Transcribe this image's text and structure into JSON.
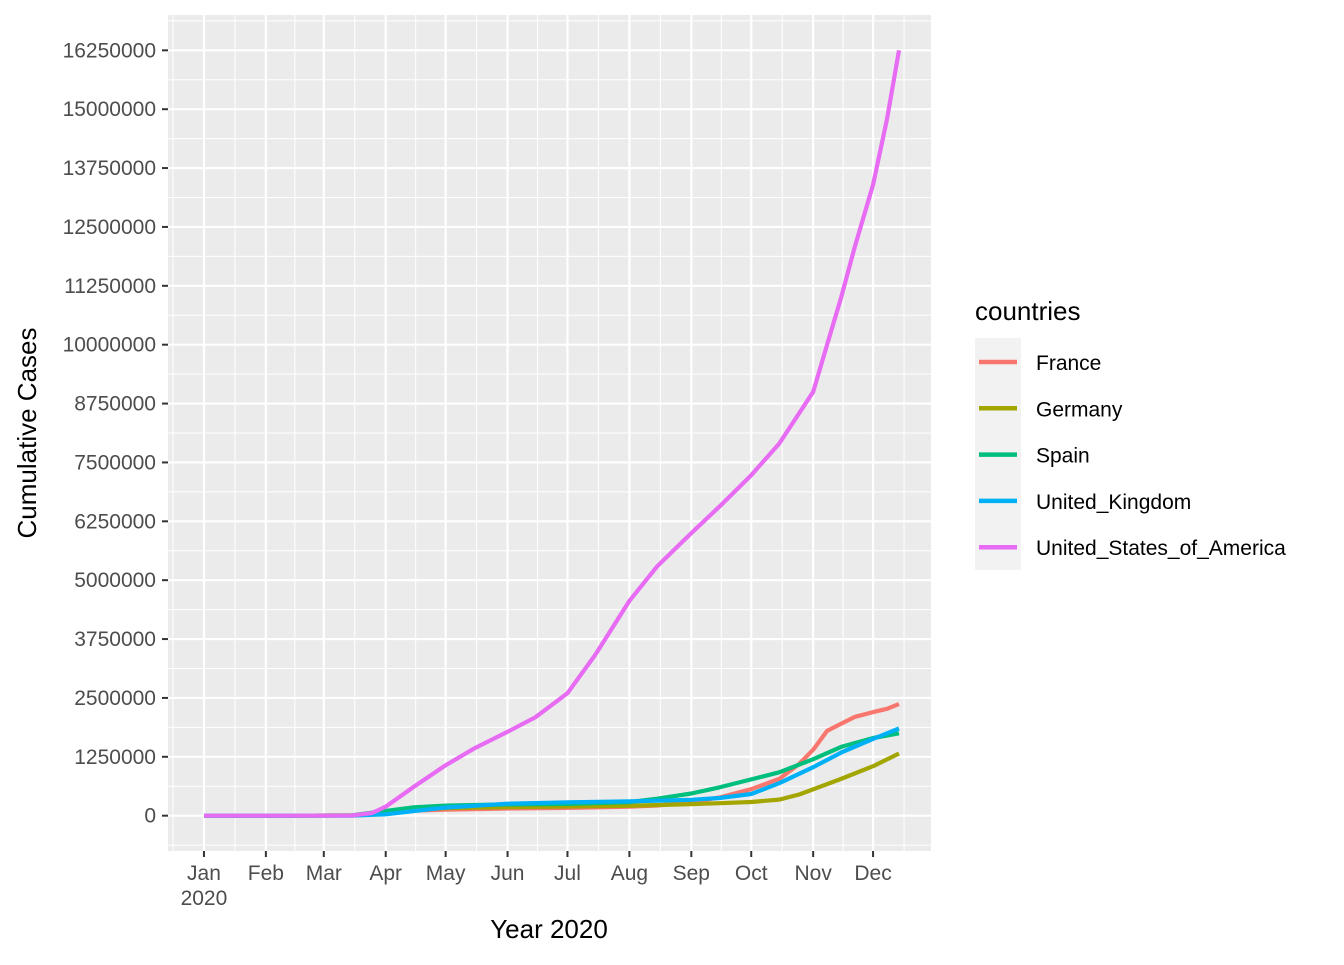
{
  "chart_data": {
    "type": "line",
    "title": "",
    "xlabel": "Year 2020",
    "ylabel": "Cumulative Cases",
    "x_axis": {
      "type": "date",
      "range": [
        "2019-12-14",
        "2020-12-30"
      ],
      "ticks": [
        {
          "date": "2020-01-01",
          "label": "Jan",
          "sublabel": "2020"
        },
        {
          "date": "2020-02-01",
          "label": "Feb",
          "sublabel": ""
        },
        {
          "date": "2020-03-01",
          "label": "Mar",
          "sublabel": ""
        },
        {
          "date": "2020-04-01",
          "label": "Apr",
          "sublabel": ""
        },
        {
          "date": "2020-05-01",
          "label": "May",
          "sublabel": ""
        },
        {
          "date": "2020-06-01",
          "label": "Jun",
          "sublabel": ""
        },
        {
          "date": "2020-07-01",
          "label": "Jul",
          "sublabel": ""
        },
        {
          "date": "2020-08-01",
          "label": "Aug",
          "sublabel": ""
        },
        {
          "date": "2020-09-01",
          "label": "Sep",
          "sublabel": ""
        },
        {
          "date": "2020-10-01",
          "label": "Oct",
          "sublabel": ""
        },
        {
          "date": "2020-11-01",
          "label": "Nov",
          "sublabel": ""
        },
        {
          "date": "2020-12-01",
          "label": "Dec",
          "sublabel": ""
        }
      ]
    },
    "y_axis": {
      "range": [
        -750000,
        17000000
      ],
      "ticks": [
        0,
        1250000,
        2500000,
        3750000,
        5000000,
        6250000,
        7500000,
        8750000,
        10000000,
        11250000,
        12500000,
        13750000,
        15000000,
        16250000
      ],
      "tick_labels": [
        "0",
        "1250000",
        "2500000",
        "3750000",
        "5000000",
        "6250000",
        "7500000",
        "8750000",
        "10000000",
        "11250000",
        "12500000",
        "13750000",
        "15000000",
        "16250000"
      ]
    },
    "grid": true,
    "legend": {
      "title": "countries",
      "position": "right"
    },
    "series": [
      {
        "name": "France",
        "color": "#F8766D",
        "points": [
          [
            "2020-01-01",
            0
          ],
          [
            "2020-02-15",
            12
          ],
          [
            "2020-03-15",
            5400
          ],
          [
            "2020-04-01",
            57000
          ],
          [
            "2020-04-15",
            106000
          ],
          [
            "2020-05-01",
            130000
          ],
          [
            "2020-06-01",
            152000
          ],
          [
            "2020-07-01",
            165000
          ],
          [
            "2020-08-01",
            191000
          ],
          [
            "2020-08-15",
            215000
          ],
          [
            "2020-09-01",
            286000
          ],
          [
            "2020-09-15",
            385000
          ],
          [
            "2020-10-01",
            563000
          ],
          [
            "2020-10-15",
            780000
          ],
          [
            "2020-10-25",
            1100000
          ],
          [
            "2020-11-01",
            1400000
          ],
          [
            "2020-11-08",
            1800000
          ],
          [
            "2020-11-15",
            1950000
          ],
          [
            "2020-11-22",
            2100000
          ],
          [
            "2020-12-01",
            2200000
          ],
          [
            "2020-12-08",
            2270000
          ],
          [
            "2020-12-14",
            2370000
          ]
        ]
      },
      {
        "name": "Germany",
        "color": "#A3A500",
        "points": [
          [
            "2020-01-01",
            0
          ],
          [
            "2020-02-15",
            16
          ],
          [
            "2020-03-15",
            5800
          ],
          [
            "2020-04-01",
            72000
          ],
          [
            "2020-04-15",
            130000
          ],
          [
            "2020-05-01",
            161000
          ],
          [
            "2020-06-01",
            181000
          ],
          [
            "2020-07-01",
            195000
          ],
          [
            "2020-08-01",
            210000
          ],
          [
            "2020-09-01",
            244000
          ],
          [
            "2020-09-15",
            265000
          ],
          [
            "2020-10-01",
            291000
          ],
          [
            "2020-10-15",
            341000
          ],
          [
            "2020-10-25",
            450000
          ],
          [
            "2020-11-01",
            560000
          ],
          [
            "2020-11-15",
            780000
          ],
          [
            "2020-12-01",
            1050000
          ],
          [
            "2020-12-14",
            1320000
          ]
        ]
      },
      {
        "name": "Spain",
        "color": "#00BF7D",
        "points": [
          [
            "2020-01-01",
            0
          ],
          [
            "2020-02-15",
            2
          ],
          [
            "2020-03-15",
            7800
          ],
          [
            "2020-04-01",
            102000
          ],
          [
            "2020-04-15",
            178000
          ],
          [
            "2020-05-01",
            214000
          ],
          [
            "2020-06-01",
            239000
          ],
          [
            "2020-07-01",
            250000
          ],
          [
            "2020-08-01",
            288000
          ],
          [
            "2020-08-15",
            360000
          ],
          [
            "2020-09-01",
            470000
          ],
          [
            "2020-09-15",
            600000
          ],
          [
            "2020-10-01",
            770000
          ],
          [
            "2020-10-15",
            920000
          ],
          [
            "2020-11-01",
            1200000
          ],
          [
            "2020-11-15",
            1460000
          ],
          [
            "2020-12-01",
            1650000
          ],
          [
            "2020-12-14",
            1750000
          ]
        ]
      },
      {
        "name": "United_Kingdom",
        "color": "#00B0F6",
        "points": [
          [
            "2020-01-01",
            0
          ],
          [
            "2020-02-15",
            9
          ],
          [
            "2020-03-15",
            1400
          ],
          [
            "2020-04-01",
            29000
          ],
          [
            "2020-04-15",
            98000
          ],
          [
            "2020-05-01",
            172000
          ],
          [
            "2020-06-01",
            255000
          ],
          [
            "2020-07-01",
            283000
          ],
          [
            "2020-08-01",
            304000
          ],
          [
            "2020-08-15",
            318000
          ],
          [
            "2020-09-01",
            338000
          ],
          [
            "2020-09-15",
            375000
          ],
          [
            "2020-10-01",
            460000
          ],
          [
            "2020-10-15",
            690000
          ],
          [
            "2020-11-01",
            1030000
          ],
          [
            "2020-11-15",
            1340000
          ],
          [
            "2020-12-01",
            1630000
          ],
          [
            "2020-12-14",
            1850000
          ]
        ]
      },
      {
        "name": "United_States_of_America",
        "color": "#E76BF3",
        "points": [
          [
            "2020-01-01",
            0
          ],
          [
            "2020-02-15",
            15
          ],
          [
            "2020-03-15",
            3000
          ],
          [
            "2020-03-25",
            55000
          ],
          [
            "2020-04-01",
            190000
          ],
          [
            "2020-04-15",
            610000
          ],
          [
            "2020-05-01",
            1070000
          ],
          [
            "2020-05-15",
            1420000
          ],
          [
            "2020-06-01",
            1780000
          ],
          [
            "2020-06-15",
            2090000
          ],
          [
            "2020-07-01",
            2600000
          ],
          [
            "2020-07-15",
            3420000
          ],
          [
            "2020-08-01",
            4560000
          ],
          [
            "2020-08-15",
            5300000
          ],
          [
            "2020-09-01",
            6000000
          ],
          [
            "2020-09-15",
            6560000
          ],
          [
            "2020-10-01",
            7230000
          ],
          [
            "2020-10-15",
            7900000
          ],
          [
            "2020-11-01",
            9000000
          ],
          [
            "2020-11-08",
            10000000
          ],
          [
            "2020-11-15",
            11000000
          ],
          [
            "2020-11-22",
            12100000
          ],
          [
            "2020-12-01",
            13400000
          ],
          [
            "2020-12-08",
            14800000
          ],
          [
            "2020-12-14",
            16250000
          ]
        ]
      }
    ]
  }
}
